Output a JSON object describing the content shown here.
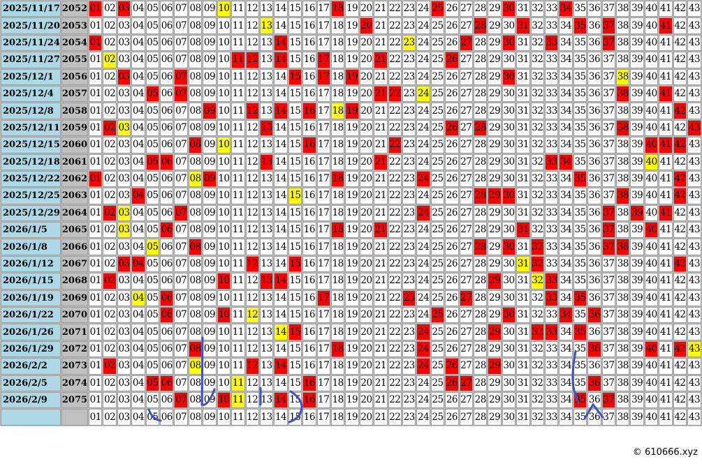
{
  "colors": {
    "date_bg": "#add8e6",
    "issue_bg": "#c0c0c0",
    "hit": "#ff0000",
    "special": "#ffff00",
    "annotation": "#3b4fd0"
  },
  "numbers": [
    "01",
    "02",
    "03",
    "04",
    "05",
    "06",
    "07",
    "08",
    "09",
    "10",
    "11",
    "12",
    "13",
    "14",
    "15",
    "16",
    "17",
    "18",
    "19",
    "20",
    "21",
    "22",
    "23",
    "24",
    "25",
    "26",
    "27",
    "28",
    "29",
    "30",
    "31",
    "32",
    "33",
    "34",
    "35",
    "36",
    "37",
    "38",
    "39",
    "40",
    "41",
    "42",
    "43"
  ],
  "rows": [
    {
      "date": "2025/11/17",
      "issue": "2052",
      "red": [
        "01",
        "03",
        "18",
        "25",
        "30",
        "34"
      ],
      "yellow": "10"
    },
    {
      "date": "2025/11/20",
      "issue": "2053",
      "red": [
        "20",
        "28",
        "31",
        "35",
        "37",
        "41"
      ],
      "yellow": "13"
    },
    {
      "date": "2025/11/24",
      "issue": "2054",
      "red": [
        "01",
        "14",
        "27",
        "30",
        "33",
        "37"
      ],
      "yellow": "23"
    },
    {
      "date": "2025/11/27",
      "issue": "2055",
      "red": [
        "11",
        "12",
        "14",
        "17",
        "21",
        "26"
      ],
      "yellow": "02"
    },
    {
      "date": "2025/12/1",
      "issue": "2056",
      "red": [
        "03",
        "07",
        "15",
        "17",
        "19",
        "30"
      ],
      "yellow": "38"
    },
    {
      "date": "2025/12/4",
      "issue": "2057",
      "red": [
        "05",
        "07",
        "21",
        "22",
        "38",
        "41"
      ],
      "yellow": "24"
    },
    {
      "date": "2025/12/8",
      "issue": "2058",
      "red": [
        "09",
        "12",
        "14",
        "16",
        "19",
        "42"
      ],
      "yellow": "18"
    },
    {
      "date": "2025/12/11",
      "issue": "2059",
      "red": [
        "02",
        "13",
        "26",
        "28",
        "38",
        "43"
      ],
      "yellow": "03"
    },
    {
      "date": "2025/12/15",
      "issue": "2060",
      "red": [
        "08",
        "16",
        "22",
        "40",
        "41",
        "42"
      ],
      "yellow": "10"
    },
    {
      "date": "2025/12/18",
      "issue": "2061",
      "red": [
        "05",
        "06",
        "13",
        "21",
        "33",
        "34"
      ],
      "yellow": "40"
    },
    {
      "date": "2025/12/22",
      "issue": "2062",
      "red": [
        "01",
        "09",
        "18",
        "24",
        "35",
        "42"
      ],
      "yellow": "08"
    },
    {
      "date": "2025/12/25",
      "issue": "2063",
      "red": [
        "04",
        "28",
        "29",
        "30",
        "38",
        "42"
      ],
      "yellow": "15"
    },
    {
      "date": "2025/12/29",
      "issue": "2064",
      "red": [
        "02",
        "07",
        "24",
        "37",
        "39",
        "41"
      ],
      "yellow": "03"
    },
    {
      "date": "2026/1/5",
      "issue": "2065",
      "red": [
        "06",
        "18",
        "21",
        "31",
        "37",
        "40"
      ],
      "yellow": "03"
    },
    {
      "date": "2026/1/8",
      "issue": "2066",
      "red": [
        "08",
        "28",
        "30",
        "32",
        "37",
        "38"
      ],
      "yellow": "05"
    },
    {
      "date": "2026/1/12",
      "issue": "2067",
      "red": [
        "03",
        "04",
        "12",
        "15",
        "32",
        "42"
      ],
      "yellow": "31"
    },
    {
      "date": "2026/1/15",
      "issue": "2068",
      "red": [
        "02",
        "10",
        "13",
        "14",
        "29",
        "33"
      ],
      "yellow": "32"
    },
    {
      "date": "2026/1/19",
      "issue": "2069",
      "red": [
        "06",
        "17",
        "23",
        "27",
        "33",
        "35"
      ],
      "yellow": "04"
    },
    {
      "date": "2026/1/22",
      "issue": "2070",
      "red": [
        "06",
        "10",
        "25",
        "30",
        "34",
        "36"
      ],
      "yellow": "12"
    },
    {
      "date": "2026/1/26",
      "issue": "2071",
      "red": [
        "15",
        "24",
        "29",
        "32",
        "33",
        "35"
      ],
      "yellow": "14"
    },
    {
      "date": "2026/1/29",
      "issue": "2072",
      "red": [
        "08",
        "18",
        "24",
        "36",
        "40",
        "42"
      ],
      "yellow": "43"
    },
    {
      "date": "2026/2/2",
      "issue": "2073",
      "red": [
        "02",
        "12",
        "14",
        "24",
        "26",
        "29"
      ],
      "yellow": "08"
    },
    {
      "date": "2026/2/5",
      "issue": "2074",
      "red": [
        "05",
        "06",
        "16",
        "26",
        "27",
        "36"
      ],
      "yellow": "11"
    },
    {
      "date": "2026/2/9",
      "issue": "2075",
      "red": [
        "07",
        "10",
        "14",
        "16",
        "35",
        "37"
      ],
      "yellow": "11"
    }
  ],
  "footer_row": {
    "date": "",
    "issue": ""
  },
  "copyright": "© 610666.xyz"
}
